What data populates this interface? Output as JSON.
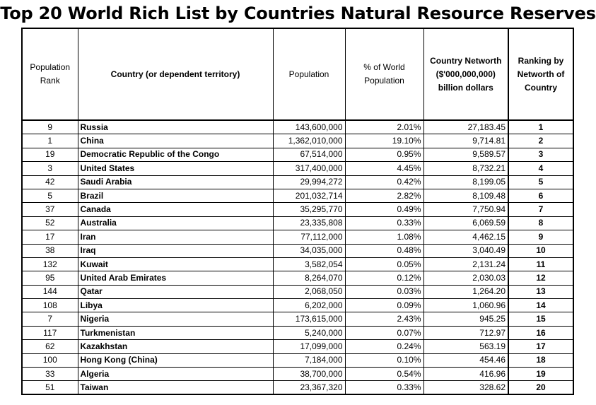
{
  "title": "Top 20 World Rich List by Countries Natural Resource Reserves",
  "headers": {
    "pop_rank": "Population Rank",
    "country": "Country (or dependent territory)",
    "population": "Population",
    "pct": "% of World Population",
    "networth": "Country Networth ($'000,000,000) billion dollars",
    "ranking": "Ranking by Networth of Country"
  },
  "rows": [
    {
      "pop_rank": "9",
      "country": "Russia",
      "population": "143,600,000",
      "pct": "2.01%",
      "networth": "27,183.45",
      "rank": "1"
    },
    {
      "pop_rank": "1",
      "country": "China",
      "population": "1,362,010,000",
      "pct": "19.10%",
      "networth": "9,714.81",
      "rank": "2"
    },
    {
      "pop_rank": "19",
      "country": "Democratic Republic of the Congo",
      "population": "67,514,000",
      "pct": "0.95%",
      "networth": "9,589.57",
      "rank": "3"
    },
    {
      "pop_rank": "3",
      "country": "United States",
      "population": "317,400,000",
      "pct": "4.45%",
      "networth": "8,732.21",
      "rank": "4"
    },
    {
      "pop_rank": "42",
      "country": "Saudi Arabia",
      "population": "29,994,272",
      "pct": "0.42%",
      "networth": "8,199.05",
      "rank": "5"
    },
    {
      "pop_rank": "5",
      "country": "Brazil",
      "population": "201,032,714",
      "pct": "2.82%",
      "networth": "8,109.48",
      "rank": "6"
    },
    {
      "pop_rank": "37",
      "country": "Canada",
      "population": "35,295,770",
      "pct": "0.49%",
      "networth": "7,750.94",
      "rank": "7"
    },
    {
      "pop_rank": "52",
      "country": "Australia",
      "population": "23,335,808",
      "pct": "0.33%",
      "networth": "6,069.59",
      "rank": "8"
    },
    {
      "pop_rank": "17",
      "country": "Iran",
      "population": "77,112,000",
      "pct": "1.08%",
      "networth": "4,462.15",
      "rank": "9"
    },
    {
      "pop_rank": "38",
      "country": "Iraq",
      "population": "34,035,000",
      "pct": "0.48%",
      "networth": "3,040.49",
      "rank": "10"
    },
    {
      "pop_rank": "132",
      "country": "Kuwait",
      "population": "3,582,054",
      "pct": "0.05%",
      "networth": "2,131.24",
      "rank": "11"
    },
    {
      "pop_rank": "95",
      "country": "United Arab Emirates",
      "population": "8,264,070",
      "pct": "0.12%",
      "networth": "2,030.03",
      "rank": "12"
    },
    {
      "pop_rank": "144",
      "country": "Qatar",
      "population": "2,068,050",
      "pct": "0.03%",
      "networth": "1,264.20",
      "rank": "13"
    },
    {
      "pop_rank": "108",
      "country": "Libya",
      "population": "6,202,000",
      "pct": "0.09%",
      "networth": "1,060.96",
      "rank": "14"
    },
    {
      "pop_rank": "7",
      "country": "Nigeria",
      "population": "173,615,000",
      "pct": "2.43%",
      "networth": "945.25",
      "rank": "15"
    },
    {
      "pop_rank": "117",
      "country": "Turkmenistan",
      "population": "5,240,000",
      "pct": "0.07%",
      "networth": "712.97",
      "rank": "16"
    },
    {
      "pop_rank": "62",
      "country": "Kazakhstan",
      "population": "17,099,000",
      "pct": "0.24%",
      "networth": "563.19",
      "rank": "17"
    },
    {
      "pop_rank": "100",
      "country": "Hong Kong (China)",
      "population": "7,184,000",
      "pct": "0.10%",
      "networth": "454.46",
      "rank": "18"
    },
    {
      "pop_rank": "33",
      "country": "Algeria",
      "population": "38,700,000",
      "pct": "0.54%",
      "networth": "416.96",
      "rank": "19"
    },
    {
      "pop_rank": "51",
      "country": "Taiwan",
      "population": "23,367,320",
      "pct": "0.33%",
      "networth": "328.62",
      "rank": "20"
    }
  ]
}
